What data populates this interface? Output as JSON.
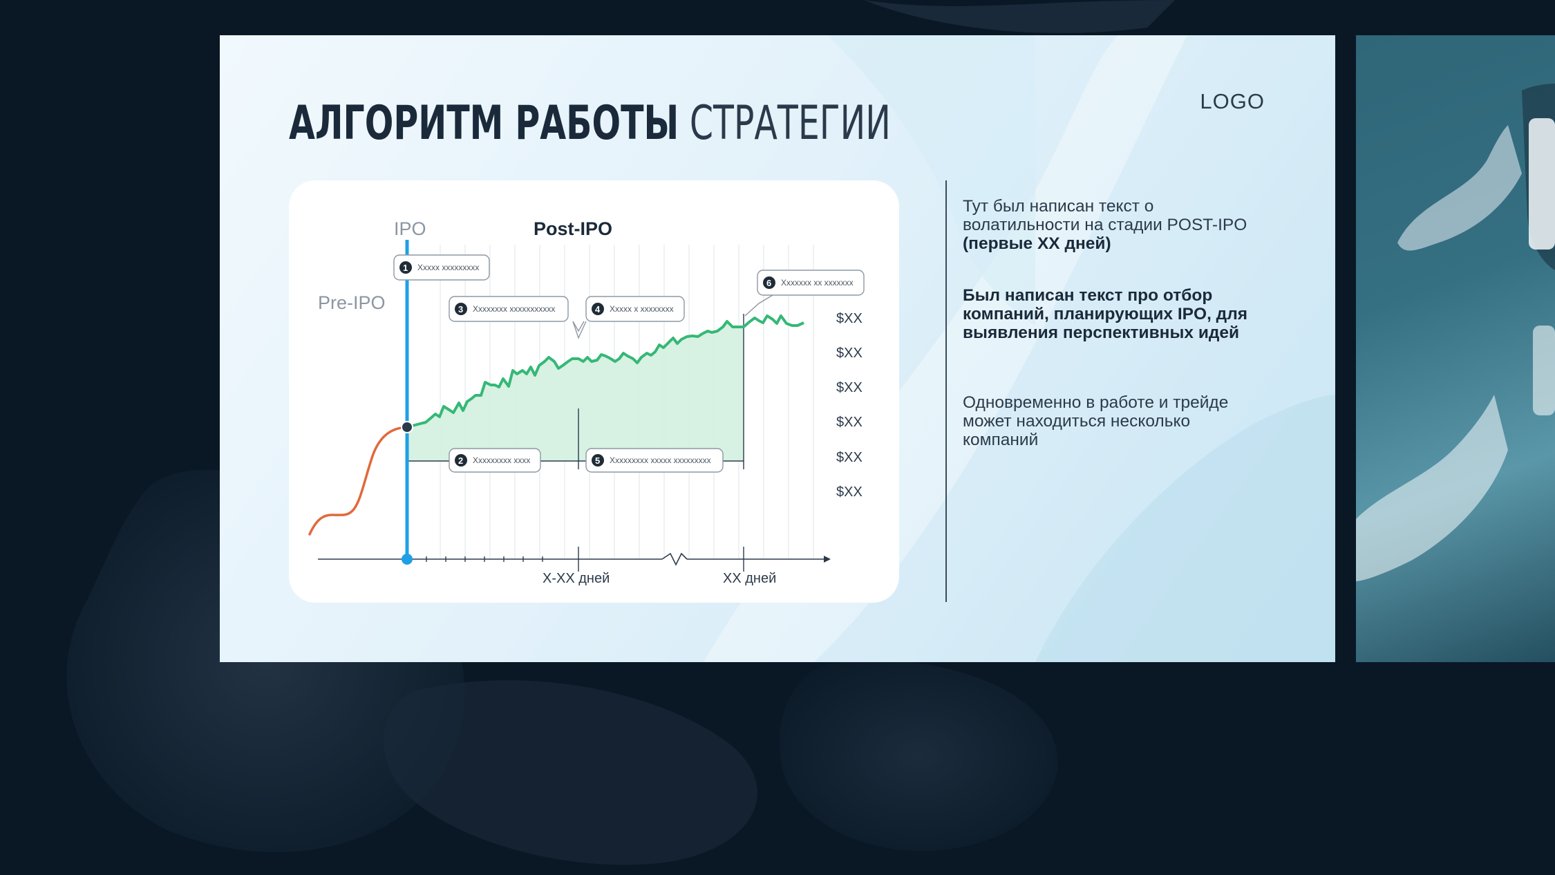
{
  "slide": {
    "title_bold": "АЛГОРИТМ РАБОТЫ",
    "title_light": "СТРАТЕГИИ",
    "logo": "LOGO"
  },
  "chart": {
    "phase_labels": {
      "ipo": "IPO",
      "pre_ipo": "Pre-IPO",
      "post_ipo": "Post-IPO"
    },
    "callouts": [
      {
        "num": "1",
        "text": "Xxxxx xxxxxxxxx"
      },
      {
        "num": "2",
        "text": "Xxxxxxxxx xxxx"
      },
      {
        "num": "3",
        "text": "Xxxxxxxx xxxxxxxxxxx"
      },
      {
        "num": "4",
        "text": "Xxxxx x xxxxxxxx"
      },
      {
        "num": "5",
        "text": "Xxxxxxxxx xxxxx xxxxxxxxx"
      },
      {
        "num": "6",
        "text": "Xxxxxxx xx xxxxxxx"
      }
    ],
    "price_labels": [
      "$XX",
      "$XX",
      "$XX",
      "$XX",
      "$XX",
      "$XX"
    ],
    "x_labels": {
      "first": "X-XX дней",
      "second": "XX дней"
    },
    "colors": {
      "pre_ipo_line": "#e06a3b",
      "post_ipo_line": "#35b876",
      "fill": "#d5f0e1",
      "ipo_line": "#1fa0e6"
    }
  },
  "sidebar": {
    "text1": "Тут был написан текст о волатильности на стадии POST-IPO",
    "text1_bold": "(первые XX дней)",
    "text2": "Был написан текст про отбор компаний, планирующих IPO, для выявления перспективных идей",
    "text3": "Одновременно в работе и трейде может находиться несколько компаний"
  }
}
